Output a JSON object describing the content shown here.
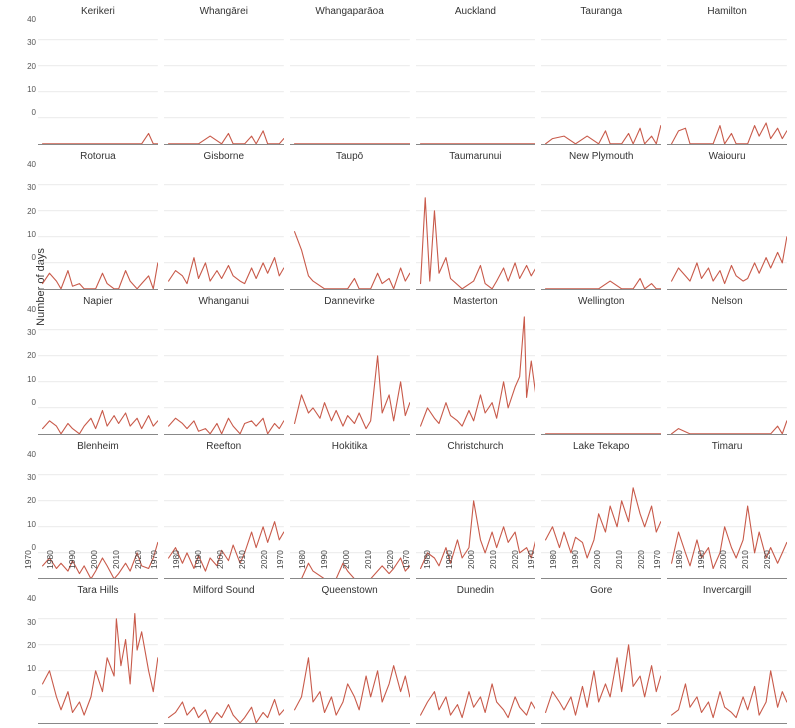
{
  "ylabel": "Number of days",
  "yticks": [
    0,
    10,
    20,
    30,
    40
  ],
  "ylim": [
    0,
    48
  ],
  "xlim": [
    1970,
    2022
  ],
  "xticks": [
    1970,
    1980,
    1990,
    2000,
    2010,
    2020
  ],
  "line_color": "#c85a4a",
  "grid_color": "#dddddd",
  "text_color": "#333333",
  "bg_color": "#ffffff",
  "title_fontsize": 10,
  "tick_fontsize": 8.5,
  "panels": [
    {
      "title": "Kerikeri",
      "years": [
        1972,
        1975,
        1980,
        1985,
        1990,
        1995,
        2000,
        2005,
        2008,
        2010,
        2013,
        2015,
        2018,
        2020,
        2022
      ],
      "values": [
        0,
        0,
        0,
        0,
        0,
        0,
        0,
        0,
        0,
        0,
        0,
        0,
        4,
        0,
        0
      ]
    },
    {
      "title": "Whangārei",
      "years": [
        1972,
        1975,
        1980,
        1985,
        1990,
        1995,
        1998,
        2000,
        2003,
        2005,
        2008,
        2010,
        2013,
        2015,
        2018,
        2020,
        2022
      ],
      "values": [
        0,
        0,
        0,
        0,
        3,
        0,
        4,
        0,
        0,
        0,
        3,
        0,
        5,
        0,
        0,
        0,
        2
      ]
    },
    {
      "title": "Whangaparāoa",
      "years": [
        1972,
        1980,
        1990,
        2000,
        2010,
        2020,
        2022
      ],
      "values": [
        0,
        0,
        0,
        0,
        0,
        0,
        0
      ]
    },
    {
      "title": "Auckland",
      "years": [
        1972,
        1980,
        1990,
        2000,
        2005,
        2010,
        2015,
        2020,
        2022
      ],
      "values": [
        0,
        0,
        0,
        0,
        0,
        0,
        0,
        0,
        0
      ]
    },
    {
      "title": "Tauranga",
      "years": [
        1972,
        1975,
        1980,
        1985,
        1990,
        1995,
        1998,
        2000,
        2002,
        2005,
        2008,
        2010,
        2013,
        2015,
        2018,
        2020,
        2022
      ],
      "values": [
        0,
        2,
        3,
        0,
        3,
        0,
        5,
        0,
        0,
        0,
        4,
        0,
        6,
        0,
        3,
        0,
        7
      ]
    },
    {
      "title": "Hamilton",
      "years": [
        1972,
        1975,
        1978,
        1980,
        1985,
        1990,
        1993,
        1995,
        1998,
        2000,
        2003,
        2005,
        2008,
        2010,
        2013,
        2015,
        2018,
        2020,
        2022
      ],
      "values": [
        0,
        5,
        6,
        0,
        0,
        0,
        7,
        0,
        4,
        0,
        0,
        0,
        7,
        3,
        8,
        2,
        6,
        2,
        5
      ]
    },
    {
      "title": "Rotorua",
      "years": [
        1972,
        1975,
        1978,
        1980,
        1983,
        1985,
        1988,
        1990,
        1993,
        1995,
        1998,
        2000,
        2003,
        2005,
        2008,
        2010,
        2013,
        2015,
        2018,
        2020,
        2022
      ],
      "values": [
        2,
        6,
        3,
        0,
        7,
        1,
        2,
        0,
        0,
        0,
        6,
        2,
        0,
        0,
        7,
        3,
        0,
        2,
        5,
        0,
        10
      ]
    },
    {
      "title": "Gisborne",
      "years": [
        1972,
        1975,
        1978,
        1980,
        1983,
        1985,
        1988,
        1990,
        1993,
        1995,
        1998,
        2000,
        2003,
        2005,
        2008,
        2010,
        2013,
        2015,
        2018,
        2020,
        2022
      ],
      "values": [
        3,
        7,
        5,
        2,
        12,
        4,
        10,
        3,
        7,
        4,
        9,
        5,
        3,
        2,
        8,
        4,
        10,
        6,
        12,
        5,
        8
      ]
    },
    {
      "title": "Taupō",
      "years": [
        1972,
        1975,
        1978,
        1980,
        1985,
        1990,
        1995,
        1998,
        2000,
        2003,
        2005,
        2008,
        2010,
        2013,
        2015,
        2018,
        2020,
        2022
      ],
      "values": [
        22,
        15,
        5,
        3,
        0,
        0,
        0,
        4,
        0,
        0,
        0,
        6,
        2,
        4,
        0,
        8,
        3,
        6
      ]
    },
    {
      "title": "Taumarunui",
      "years": [
        1972,
        1974,
        1976,
        1978,
        1980,
        1983,
        1985,
        1990,
        1995,
        1998,
        2000,
        2003,
        2005,
        2008,
        2010,
        2013,
        2015,
        2018,
        2020,
        2022
      ],
      "values": [
        2,
        35,
        3,
        30,
        6,
        12,
        4,
        0,
        3,
        9,
        2,
        0,
        3,
        8,
        3,
        10,
        4,
        9,
        5,
        8
      ]
    },
    {
      "title": "New Plymouth",
      "years": [
        1972,
        1978,
        1985,
        1990,
        1995,
        2000,
        2005,
        2010,
        2013,
        2015,
        2018,
        2020,
        2022
      ],
      "values": [
        0,
        0,
        0,
        0,
        0,
        3,
        0,
        0,
        4,
        0,
        2,
        0,
        0
      ]
    },
    {
      "title": "Waiouru",
      "years": [
        1972,
        1975,
        1978,
        1980,
        1983,
        1985,
        1988,
        1990,
        1993,
        1995,
        1998,
        2000,
        2003,
        2005,
        2008,
        2010,
        2013,
        2015,
        2018,
        2020,
        2022
      ],
      "values": [
        3,
        8,
        5,
        3,
        10,
        4,
        8,
        3,
        7,
        2,
        9,
        5,
        3,
        4,
        10,
        6,
        12,
        8,
        14,
        10,
        20
      ]
    },
    {
      "title": "Napier",
      "years": [
        1972,
        1975,
        1978,
        1980,
        1983,
        1985,
        1988,
        1990,
        1993,
        1995,
        1998,
        2000,
        2003,
        2005,
        2008,
        2010,
        2013,
        2015,
        2018,
        2020,
        2022
      ],
      "values": [
        2,
        5,
        3,
        0,
        4,
        2,
        0,
        3,
        6,
        2,
        9,
        3,
        7,
        4,
        8,
        3,
        6,
        2,
        7,
        3,
        5
      ]
    },
    {
      "title": "Whanganui",
      "years": [
        1972,
        1975,
        1978,
        1980,
        1983,
        1985,
        1988,
        1990,
        1993,
        1995,
        1998,
        2000,
        2003,
        2005,
        2008,
        2010,
        2013,
        2015,
        2018,
        2020,
        2022
      ],
      "values": [
        3,
        6,
        4,
        2,
        5,
        1,
        2,
        0,
        4,
        0,
        6,
        3,
        0,
        4,
        5,
        3,
        6,
        0,
        4,
        2,
        5
      ]
    },
    {
      "title": "Dannevirke",
      "years": [
        1972,
        1975,
        1978,
        1980,
        1983,
        1985,
        1988,
        1990,
        1993,
        1995,
        1998,
        2000,
        2003,
        2005,
        2008,
        2010,
        2013,
        2015,
        2018,
        2020,
        2022
      ],
      "values": [
        4,
        15,
        8,
        10,
        6,
        12,
        5,
        9,
        3,
        7,
        4,
        8,
        2,
        5,
        30,
        8,
        15,
        5,
        20,
        7,
        12
      ]
    },
    {
      "title": "Masterton",
      "years": [
        1972,
        1975,
        1978,
        1980,
        1983,
        1985,
        1988,
        1990,
        1993,
        1995,
        1998,
        2000,
        2003,
        2005,
        2008,
        2010,
        2013,
        2015,
        2017,
        2018,
        2020,
        2022
      ],
      "values": [
        3,
        10,
        6,
        4,
        12,
        7,
        5,
        3,
        9,
        5,
        15,
        8,
        12,
        6,
        20,
        10,
        18,
        22,
        45,
        14,
        28,
        15
      ]
    },
    {
      "title": "Wellington",
      "years": [
        1972,
        1980,
        1990,
        2000,
        2010,
        2020,
        2022
      ],
      "values": [
        0,
        0,
        0,
        0,
        0,
        0,
        0
      ]
    },
    {
      "title": "Nelson",
      "years": [
        1972,
        1975,
        1980,
        1985,
        1990,
        1995,
        2000,
        2005,
        2010,
        2015,
        2018,
        2020,
        2022
      ],
      "values": [
        0,
        2,
        0,
        0,
        0,
        0,
        0,
        0,
        0,
        0,
        3,
        0,
        5
      ]
    },
    {
      "title": "Blenheim",
      "years": [
        1972,
        1975,
        1978,
        1980,
        1983,
        1985,
        1988,
        1990,
        1993,
        1995,
        1998,
        2000,
        2003,
        2005,
        2008,
        2010,
        2013,
        2015,
        2018,
        2020,
        2022
      ],
      "values": [
        5,
        8,
        4,
        6,
        3,
        7,
        2,
        5,
        0,
        3,
        8,
        5,
        0,
        2,
        6,
        3,
        10,
        5,
        4,
        8,
        14
      ]
    },
    {
      "title": "Reefton",
      "years": [
        1972,
        1975,
        1978,
        1980,
        1983,
        1985,
        1988,
        1990,
        1993,
        1995,
        1998,
        2000,
        2003,
        2005,
        2008,
        2010,
        2013,
        2015,
        2018,
        2020,
        2022
      ],
      "values": [
        8,
        12,
        6,
        10,
        4,
        9,
        3,
        8,
        5,
        11,
        7,
        13,
        6,
        10,
        18,
        12,
        20,
        14,
        22,
        15,
        18
      ]
    },
    {
      "title": "Hokitika",
      "years": [
        1972,
        1975,
        1978,
        1980,
        1985,
        1990,
        1993,
        1995,
        1998,
        2000,
        2005,
        2010,
        2013,
        2015,
        2018,
        2020,
        2022
      ],
      "values": [
        0,
        0,
        6,
        3,
        0,
        0,
        6,
        3,
        0,
        0,
        0,
        5,
        2,
        4,
        8,
        3,
        5
      ]
    },
    {
      "title": "Christchurch",
      "years": [
        1972,
        1975,
        1978,
        1980,
        1983,
        1985,
        1988,
        1990,
        1993,
        1995,
        1998,
        2000,
        2003,
        2005,
        2008,
        2010,
        2013,
        2015,
        2018,
        2020,
        2022
      ],
      "values": [
        4,
        10,
        8,
        5,
        12,
        6,
        15,
        8,
        12,
        30,
        15,
        10,
        18,
        12,
        20,
        14,
        18,
        10,
        12,
        8,
        15
      ]
    },
    {
      "title": "Lake Tekapo",
      "years": [
        1972,
        1975,
        1978,
        1980,
        1983,
        1985,
        1988,
        1990,
        1993,
        1995,
        1998,
        2000,
        2003,
        2005,
        2008,
        2010,
        2013,
        2015,
        2018,
        2020,
        2022
      ],
      "values": [
        15,
        20,
        12,
        18,
        10,
        16,
        14,
        8,
        15,
        25,
        18,
        28,
        20,
        30,
        22,
        35,
        25,
        20,
        28,
        18,
        22
      ]
    },
    {
      "title": "Timaru",
      "years": [
        1972,
        1975,
        1978,
        1980,
        1983,
        1985,
        1988,
        1990,
        1993,
        1995,
        1998,
        2000,
        2003,
        2005,
        2008,
        2010,
        2013,
        2015,
        2018,
        2020,
        2022
      ],
      "values": [
        6,
        18,
        10,
        5,
        15,
        8,
        12,
        4,
        10,
        20,
        12,
        8,
        15,
        28,
        10,
        18,
        8,
        12,
        6,
        10,
        14
      ]
    },
    {
      "title": "Tara Hills",
      "years": [
        1972,
        1975,
        1978,
        1980,
        1983,
        1985,
        1988,
        1990,
        1993,
        1995,
        1998,
        2000,
        2003,
        2004,
        2006,
        2008,
        2010,
        2012,
        2013,
        2015,
        2018,
        2020,
        2022
      ],
      "values": [
        15,
        20,
        10,
        5,
        12,
        4,
        8,
        3,
        10,
        20,
        12,
        25,
        18,
        40,
        22,
        32,
        15,
        42,
        28,
        35,
        20,
        12,
        25
      ]
    },
    {
      "title": "Milford Sound",
      "years": [
        1972,
        1975,
        1978,
        1980,
        1983,
        1985,
        1988,
        1990,
        1993,
        1995,
        1998,
        2000,
        2003,
        2005,
        2008,
        2010,
        2013,
        2015,
        2018,
        2020,
        2022
      ],
      "values": [
        2,
        4,
        8,
        3,
        6,
        2,
        5,
        0,
        4,
        2,
        7,
        3,
        0,
        2,
        6,
        0,
        4,
        2,
        9,
        3,
        5
      ]
    },
    {
      "title": "Queenstown",
      "years": [
        1972,
        1975,
        1978,
        1980,
        1983,
        1985,
        1988,
        1990,
        1993,
        1995,
        1998,
        2000,
        2003,
        2005,
        2008,
        2010,
        2013,
        2015,
        2018,
        2020,
        2022
      ],
      "values": [
        5,
        10,
        25,
        8,
        12,
        4,
        10,
        3,
        8,
        15,
        10,
        5,
        18,
        10,
        20,
        8,
        15,
        22,
        12,
        18,
        10
      ]
    },
    {
      "title": "Dunedin",
      "years": [
        1972,
        1975,
        1978,
        1980,
        1983,
        1985,
        1988,
        1990,
        1993,
        1995,
        1998,
        2000,
        2003,
        2005,
        2008,
        2010,
        2013,
        2015,
        2018,
        2020,
        2022
      ],
      "values": [
        3,
        8,
        12,
        5,
        10,
        3,
        7,
        2,
        12,
        6,
        10,
        4,
        15,
        8,
        5,
        2,
        10,
        6,
        3,
        8,
        5
      ]
    },
    {
      "title": "Gore",
      "years": [
        1972,
        1975,
        1978,
        1980,
        1983,
        1985,
        1988,
        1990,
        1993,
        1995,
        1998,
        2000,
        2003,
        2005,
        2008,
        2010,
        2013,
        2015,
        2018,
        2020,
        2022
      ],
      "values": [
        4,
        12,
        8,
        5,
        10,
        3,
        14,
        6,
        20,
        8,
        15,
        10,
        25,
        12,
        30,
        14,
        18,
        10,
        22,
        12,
        18
      ]
    },
    {
      "title": "Invercargill",
      "years": [
        1972,
        1975,
        1978,
        1980,
        1983,
        1985,
        1988,
        1990,
        1993,
        1995,
        1998,
        2000,
        2003,
        2005,
        2008,
        2010,
        2013,
        2015,
        2018,
        2020,
        2022
      ],
      "values": [
        3,
        5,
        15,
        6,
        10,
        4,
        8,
        2,
        12,
        6,
        4,
        2,
        10,
        5,
        14,
        3,
        8,
        20,
        6,
        12,
        8
      ]
    }
  ]
}
